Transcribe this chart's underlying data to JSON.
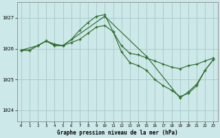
{
  "xlabel": "Graphe pression niveau de la mer (hPa)",
  "background_color": "#cde8e8",
  "plot_bg_color": "#cde8e8",
  "grid_color": "#aacccc",
  "line_color": "#2d6e2d",
  "ylim": [
    1023.65,
    1027.5
  ],
  "yticks": [
    1024,
    1025,
    1026,
    1027
  ],
  "xticks": [
    0,
    1,
    2,
    3,
    4,
    5,
    6,
    7,
    8,
    9,
    10,
    11,
    12,
    13,
    14,
    15,
    16,
    17,
    18,
    19,
    20,
    21,
    22,
    23
  ],
  "series1_x": [
    0,
    1,
    2,
    3,
    4,
    5,
    6,
    7,
    8,
    9,
    10,
    11,
    12,
    13,
    14,
    15,
    16,
    17,
    18,
    19,
    20,
    21,
    22,
    23
  ],
  "series1_y": [
    1025.95,
    1025.95,
    1026.1,
    1026.25,
    1026.1,
    1026.1,
    1026.2,
    1026.3,
    1026.5,
    1026.7,
    1026.75,
    1026.55,
    1026.1,
    1025.85,
    1025.8,
    1025.7,
    1025.6,
    1025.5,
    1025.4,
    1025.35,
    1025.45,
    1025.5,
    1025.6,
    1025.7
  ],
  "series2_x": [
    0,
    1,
    2,
    3,
    4,
    5,
    6,
    7,
    8,
    9,
    10,
    11,
    12,
    13,
    14,
    15,
    16,
    17,
    18,
    19,
    20,
    21,
    22,
    23
  ],
  "series2_y": [
    1025.95,
    1025.95,
    1026.1,
    1026.25,
    1026.15,
    1026.1,
    1026.3,
    1026.6,
    1026.85,
    1027.05,
    1027.1,
    1026.55,
    1025.9,
    1025.55,
    1025.45,
    1025.3,
    1025.0,
    1024.8,
    1024.65,
    1024.45,
    1024.55,
    1024.8,
    1025.3,
    1025.65
  ],
  "series3_x": [
    0,
    2,
    3,
    4,
    5,
    10,
    15,
    19,
    20,
    21,
    22,
    23
  ],
  "series3_y": [
    1025.95,
    1026.1,
    1026.25,
    1026.1,
    1026.1,
    1027.05,
    1025.75,
    1024.4,
    1024.6,
    1024.85,
    1025.3,
    1025.65
  ],
  "marker": "+"
}
